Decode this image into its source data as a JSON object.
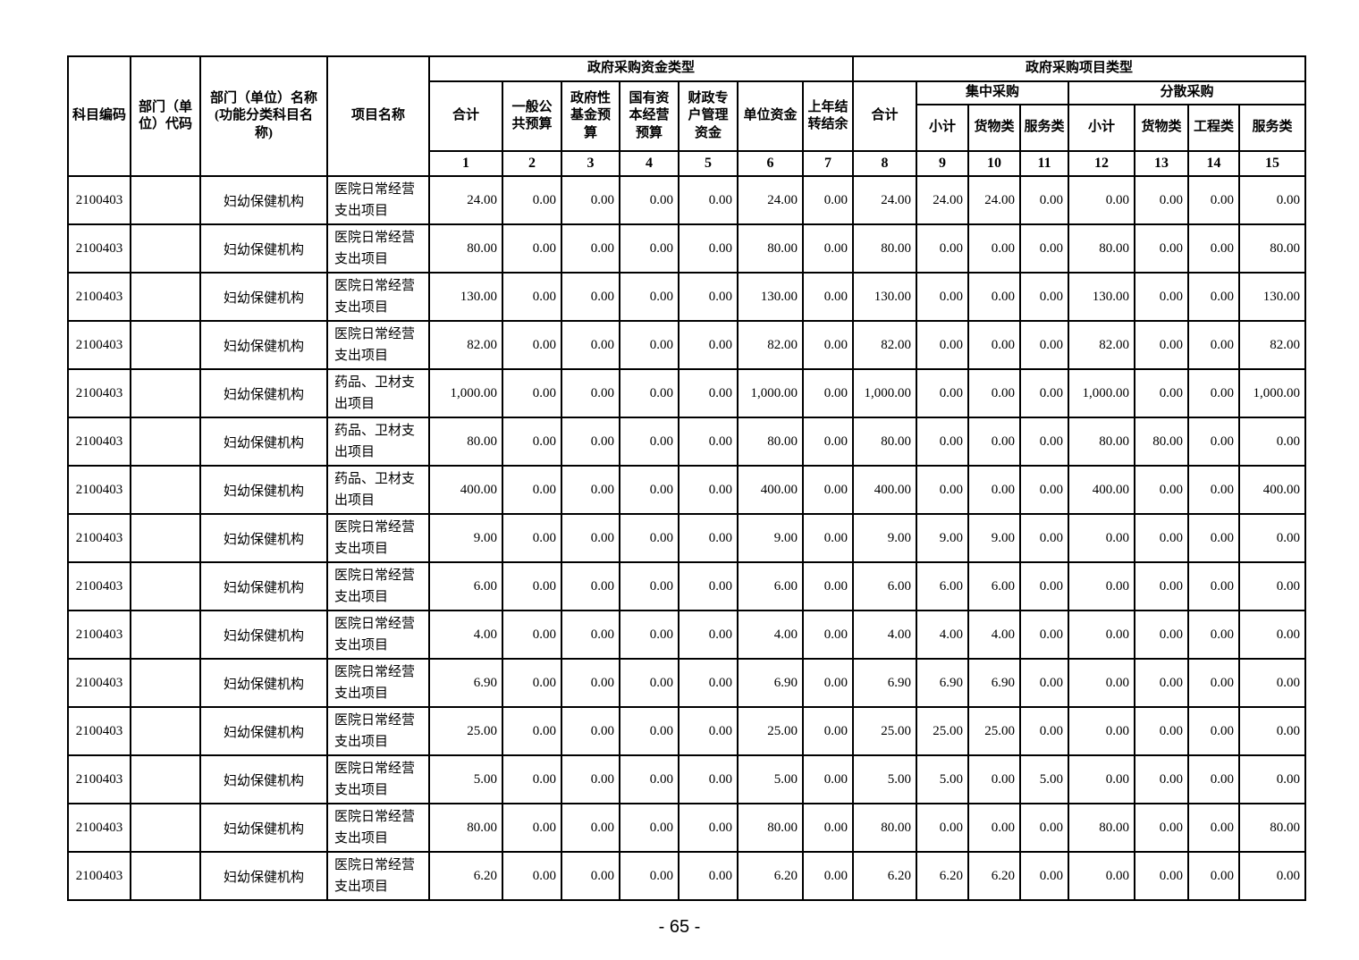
{
  "page": {
    "footer_page_number": "- 65 -"
  },
  "table": {
    "corner_headers": {
      "subject_code": "科目编码",
      "dept_code": "部门（单\n位）代码",
      "dept_name": "部门（单位）名称\n(功能分类科目名\n称)",
      "project_name": "项目名称"
    },
    "fund_type_group": {
      "title": "政府采购资金类型",
      "columns": [
        "合计",
        "一般公\n共预算",
        "政府性\n基金预\n算",
        "国有资\n本经营\n预算",
        "财政专\n户管理\n资金",
        "单位资金",
        "上年结\n转结余"
      ]
    },
    "project_type_group": {
      "title": "政府采购项目类型",
      "total": "合计",
      "centralized": {
        "title": "集中采购",
        "columns": [
          "小计",
          "货物类",
          "服务类"
        ]
      },
      "decentralized": {
        "title": "分散采购",
        "columns": [
          "小计",
          "货物类",
          "工程类",
          "服务类"
        ]
      }
    },
    "column_numbers": [
      "1",
      "2",
      "3",
      "4",
      "5",
      "6",
      "7",
      "8",
      "9",
      "10",
      "11",
      "12",
      "13",
      "14",
      "15"
    ],
    "rows": [
      {
        "subject_code": "2100403",
        "dept_code": "",
        "dept_name": "妇幼保健机构",
        "project": "医院日常经营支出项目",
        "values": [
          "24.00",
          "0.00",
          "0.00",
          "0.00",
          "0.00",
          "24.00",
          "0.00",
          "24.00",
          "24.00",
          "24.00",
          "0.00",
          "0.00",
          "0.00",
          "0.00",
          "0.00"
        ]
      },
      {
        "subject_code": "2100403",
        "dept_code": "",
        "dept_name": "妇幼保健机构",
        "project": "医院日常经营支出项目",
        "values": [
          "80.00",
          "0.00",
          "0.00",
          "0.00",
          "0.00",
          "80.00",
          "0.00",
          "80.00",
          "0.00",
          "0.00",
          "0.00",
          "80.00",
          "0.00",
          "0.00",
          "80.00"
        ]
      },
      {
        "subject_code": "2100403",
        "dept_code": "",
        "dept_name": "妇幼保健机构",
        "project": "医院日常经营支出项目",
        "values": [
          "130.00",
          "0.00",
          "0.00",
          "0.00",
          "0.00",
          "130.00",
          "0.00",
          "130.00",
          "0.00",
          "0.00",
          "0.00",
          "130.00",
          "0.00",
          "0.00",
          "130.00"
        ]
      },
      {
        "subject_code": "2100403",
        "dept_code": "",
        "dept_name": "妇幼保健机构",
        "project": "医院日常经营支出项目",
        "values": [
          "82.00",
          "0.00",
          "0.00",
          "0.00",
          "0.00",
          "82.00",
          "0.00",
          "82.00",
          "0.00",
          "0.00",
          "0.00",
          "82.00",
          "0.00",
          "0.00",
          "82.00"
        ]
      },
      {
        "subject_code": "2100403",
        "dept_code": "",
        "dept_name": "妇幼保健机构",
        "project": "药品、卫材支出项目",
        "values": [
          "1,000.00",
          "0.00",
          "0.00",
          "0.00",
          "0.00",
          "1,000.00",
          "0.00",
          "1,000.00",
          "0.00",
          "0.00",
          "0.00",
          "1,000.00",
          "0.00",
          "0.00",
          "1,000.00"
        ]
      },
      {
        "subject_code": "2100403",
        "dept_code": "",
        "dept_name": "妇幼保健机构",
        "project": "药品、卫材支出项目",
        "values": [
          "80.00",
          "0.00",
          "0.00",
          "0.00",
          "0.00",
          "80.00",
          "0.00",
          "80.00",
          "0.00",
          "0.00",
          "0.00",
          "80.00",
          "80.00",
          "0.00",
          "0.00"
        ]
      },
      {
        "subject_code": "2100403",
        "dept_code": "",
        "dept_name": "妇幼保健机构",
        "project": "药品、卫材支出项目",
        "values": [
          "400.00",
          "0.00",
          "0.00",
          "0.00",
          "0.00",
          "400.00",
          "0.00",
          "400.00",
          "0.00",
          "0.00",
          "0.00",
          "400.00",
          "0.00",
          "0.00",
          "400.00"
        ]
      },
      {
        "subject_code": "2100403",
        "dept_code": "",
        "dept_name": "妇幼保健机构",
        "project": "医院日常经营支出项目",
        "values": [
          "9.00",
          "0.00",
          "0.00",
          "0.00",
          "0.00",
          "9.00",
          "0.00",
          "9.00",
          "9.00",
          "9.00",
          "0.00",
          "0.00",
          "0.00",
          "0.00",
          "0.00"
        ]
      },
      {
        "subject_code": "2100403",
        "dept_code": "",
        "dept_name": "妇幼保健机构",
        "project": "医院日常经营支出项目",
        "values": [
          "6.00",
          "0.00",
          "0.00",
          "0.00",
          "0.00",
          "6.00",
          "0.00",
          "6.00",
          "6.00",
          "6.00",
          "0.00",
          "0.00",
          "0.00",
          "0.00",
          "0.00"
        ]
      },
      {
        "subject_code": "2100403",
        "dept_code": "",
        "dept_name": "妇幼保健机构",
        "project": "医院日常经营支出项目",
        "values": [
          "4.00",
          "0.00",
          "0.00",
          "0.00",
          "0.00",
          "4.00",
          "0.00",
          "4.00",
          "4.00",
          "4.00",
          "0.00",
          "0.00",
          "0.00",
          "0.00",
          "0.00"
        ]
      },
      {
        "subject_code": "2100403",
        "dept_code": "",
        "dept_name": "妇幼保健机构",
        "project": "医院日常经营支出项目",
        "values": [
          "6.90",
          "0.00",
          "0.00",
          "0.00",
          "0.00",
          "6.90",
          "0.00",
          "6.90",
          "6.90",
          "6.90",
          "0.00",
          "0.00",
          "0.00",
          "0.00",
          "0.00"
        ]
      },
      {
        "subject_code": "2100403",
        "dept_code": "",
        "dept_name": "妇幼保健机构",
        "project": "医院日常经营支出项目",
        "values": [
          "25.00",
          "0.00",
          "0.00",
          "0.00",
          "0.00",
          "25.00",
          "0.00",
          "25.00",
          "25.00",
          "25.00",
          "0.00",
          "0.00",
          "0.00",
          "0.00",
          "0.00"
        ]
      },
      {
        "subject_code": "2100403",
        "dept_code": "",
        "dept_name": "妇幼保健机构",
        "project": "医院日常经营支出项目",
        "values": [
          "5.00",
          "0.00",
          "0.00",
          "0.00",
          "0.00",
          "5.00",
          "0.00",
          "5.00",
          "5.00",
          "0.00",
          "5.00",
          "0.00",
          "0.00",
          "0.00",
          "0.00"
        ]
      },
      {
        "subject_code": "2100403",
        "dept_code": "",
        "dept_name": "妇幼保健机构",
        "project": "医院日常经营支出项目",
        "values": [
          "80.00",
          "0.00",
          "0.00",
          "0.00",
          "0.00",
          "80.00",
          "0.00",
          "80.00",
          "0.00",
          "0.00",
          "0.00",
          "80.00",
          "0.00",
          "0.00",
          "80.00"
        ]
      },
      {
        "subject_code": "2100403",
        "dept_code": "",
        "dept_name": "妇幼保健机构",
        "project": "医院日常经营支出项目",
        "values": [
          "6.20",
          "0.00",
          "0.00",
          "0.00",
          "0.00",
          "6.20",
          "0.00",
          "6.20",
          "6.20",
          "6.20",
          "0.00",
          "0.00",
          "0.00",
          "0.00",
          "0.00"
        ]
      }
    ]
  }
}
